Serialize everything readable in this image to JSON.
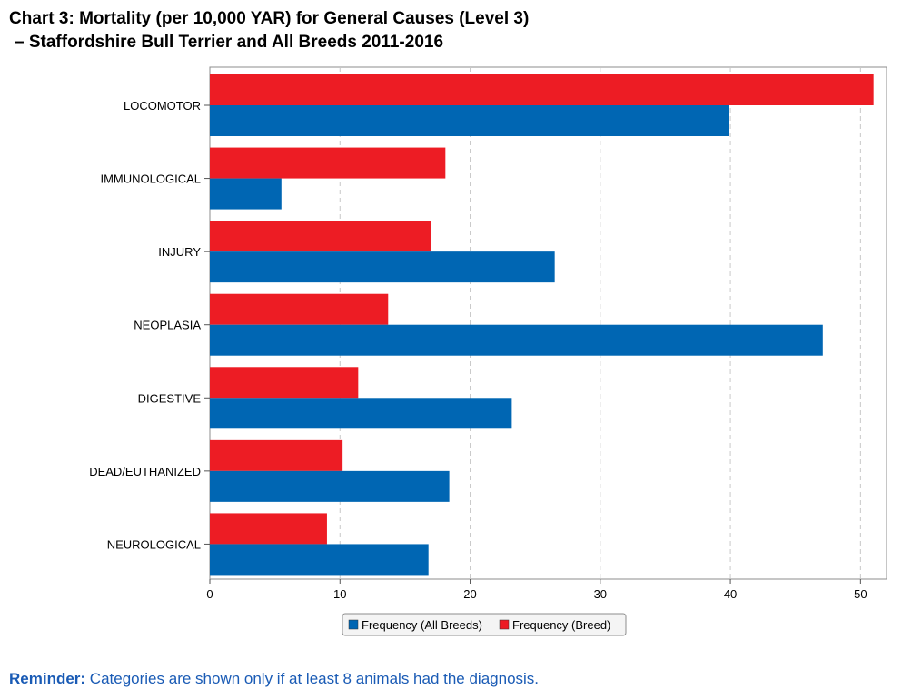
{
  "title_line1": "Chart 3: Mortality (per 10,000 YAR) for General Causes (Level 3)",
  "title_line2": "–  Staffordshire Bull Terrier and All Breeds 2011-2016",
  "reminder_label": "Reminder:",
  "reminder_text": " Categories are shown only if at least 8 animals had the diagnosis.",
  "colors": {
    "all_breeds": "#0066b3",
    "breed": "#ed1c24",
    "grid": "#c8c8c8"
  },
  "chart_data": {
    "type": "bar",
    "orientation": "horizontal",
    "title": "Chart 3: Mortality (per 10,000 YAR) for General Causes (Level 3) –  Staffordshire Bull Terrier and All Breeds 2011-2016",
    "categories": [
      "LOCOMOTOR",
      "IMMUNOLOGICAL",
      "INJURY",
      "NEOPLASIA",
      "DIGESTIVE",
      "DEAD/EUTHANIZED",
      "NEUROLOGICAL"
    ],
    "series": [
      {
        "name": "Frequency (Breed)",
        "values": [
          51,
          18.1,
          17,
          13.7,
          11.4,
          10.2,
          9
        ]
      },
      {
        "name": "Frequency (All Breeds)",
        "values": [
          39.9,
          5.5,
          26.5,
          47.1,
          23.2,
          18.4,
          16.8
        ]
      }
    ],
    "xlim": [
      0,
      52
    ],
    "xticks": [
      0,
      10,
      20,
      30,
      40,
      50
    ],
    "xlabel": "",
    "ylabel": "",
    "grid": "vertical-dashed",
    "legend": [
      "Frequency (All Breeds)",
      "Frequency (Breed)"
    ],
    "legend_position": "bottom"
  }
}
